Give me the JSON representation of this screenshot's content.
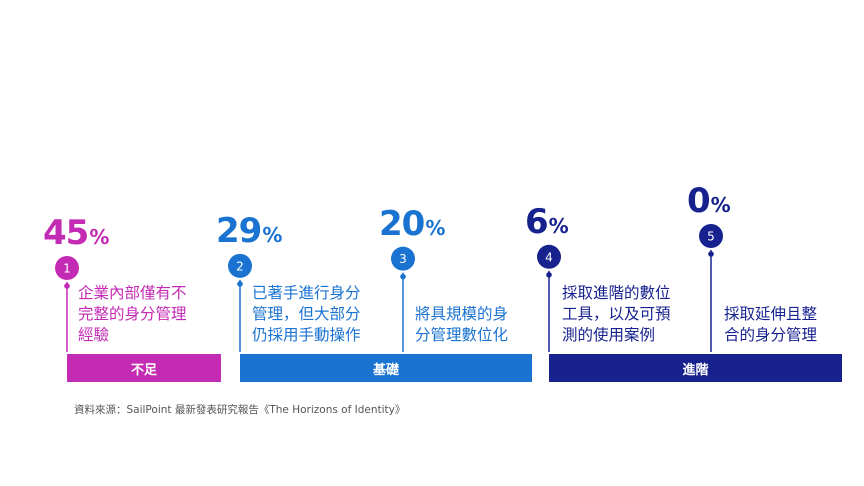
{
  "colors": {
    "magenta": "#c42bb4",
    "blue": "#1a73d1",
    "navy": "#17228f",
    "source_text": "#555555"
  },
  "chart_data": {
    "type": "bar",
    "categories": [
      "1",
      "2",
      "3",
      "4",
      "5"
    ],
    "values": [
      45,
      29,
      20,
      6,
      0
    ],
    "value_labels": [
      "45",
      "29",
      "20",
      "6",
      "0"
    ],
    "unit": "%",
    "descriptions": [
      [
        "企業內部僅有不",
        "完整的身分管理",
        "經驗"
      ],
      [
        "已著手進行身分",
        "管理，但大部分",
        "仍採用手動操作"
      ],
      [
        "將具規模的身",
        "分管理數位化"
      ],
      [
        "採取進階的數位",
        "工具，以及可預",
        "測的使用案例"
      ],
      [
        "採取延伸且整",
        "合的身分管理"
      ]
    ],
    "groups": [
      {
        "label": "不足",
        "members": [
          1
        ],
        "color": "#c42bb4"
      },
      {
        "label": "基礎",
        "members": [
          2,
          3
        ],
        "color": "#1a73d1"
      },
      {
        "label": "進階",
        "members": [
          4,
          5
        ],
        "color": "#17228f"
      }
    ]
  },
  "source": "資料來源：SailPoint 最新發表研究報告《The Horizons of Identity》"
}
